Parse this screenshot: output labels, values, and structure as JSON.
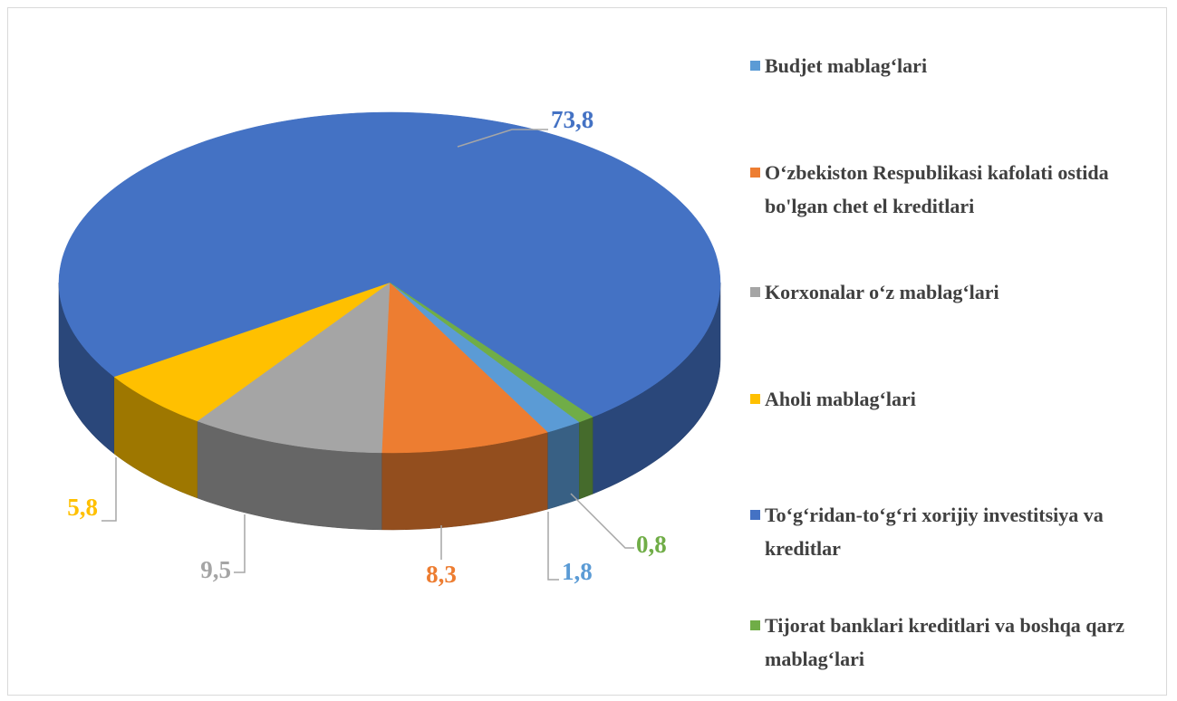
{
  "chart_data": {
    "type": "pie3d",
    "categories": [
      "Budjet mablag‘lari",
      "O‘zbekiston Respublikasi kafolati ostida bo'lgan chet el kreditlari",
      "Korxonalar o‘z mablag‘lari",
      "Aholi mablag‘lari",
      "To‘g‘ridan-to‘g‘ri xorijiy investitsiya va kreditlar",
      "Tijorat banklari kreditlari va boshqa qarz mablag‘lari"
    ],
    "values": [
      1.8,
      8.3,
      9.5,
      5.8,
      73.8,
      0.8
    ],
    "value_labels": [
      "1,8",
      "8,3",
      "9,5",
      "5,8",
      "73,8",
      "0,8"
    ],
    "colors": [
      "#5b9bd5",
      "#ed7d31",
      "#a5a5a5",
      "#ffc000",
      "#4472c4",
      "#70ad47"
    ],
    "legend": "right"
  }
}
